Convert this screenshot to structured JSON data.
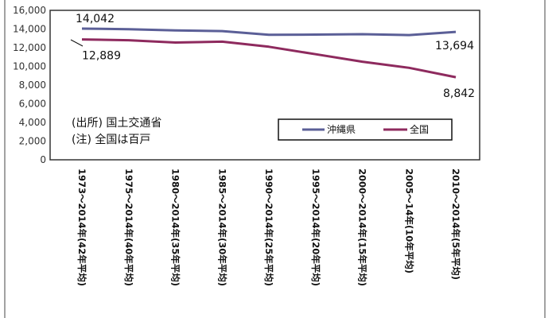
{
  "chart_data": {
    "type": "line",
    "categories": [
      "1973～2014年(42年平均)",
      "1975～2014年(40年平均)",
      "1980～2014年(35年平均)",
      "1985～2014年(30年平均)",
      "1990～2014年(25年平均)",
      "1995～2014年(20年平均)",
      "2000～2014年(15年平均)",
      "2005～14年(10年平均)",
      "2010～2014年(5年平均)"
    ],
    "series": [
      {
        "name": "沖縄県",
        "values": [
          14042,
          13980,
          13850,
          13780,
          13380,
          13400,
          13450,
          13350,
          13694
        ],
        "color": "#5B5F97"
      },
      {
        "name": "全国",
        "values": [
          12889,
          12800,
          12550,
          12650,
          12100,
          11300,
          10500,
          9850,
          8842
        ],
        "color": "#8E2A5E"
      }
    ],
    "data_labels": [
      {
        "series": 0,
        "index": 0,
        "text": "14,042"
      },
      {
        "series": 1,
        "index": 0,
        "text": "12,889"
      },
      {
        "series": 0,
        "index": 8,
        "text": "13,694"
      },
      {
        "series": 1,
        "index": 8,
        "text": "8,842"
      }
    ],
    "ylim": [
      0,
      16000
    ],
    "yticks": [
      "0",
      "2,000",
      "4,000",
      "6,000",
      "8,000",
      "10,000",
      "12,000",
      "14,000",
      "16,000"
    ],
    "annotations": [
      "(出所) 国土交通省",
      "(注) 全国は百戸"
    ],
    "legend_position": "bottom-right inside plot",
    "grid": false
  }
}
